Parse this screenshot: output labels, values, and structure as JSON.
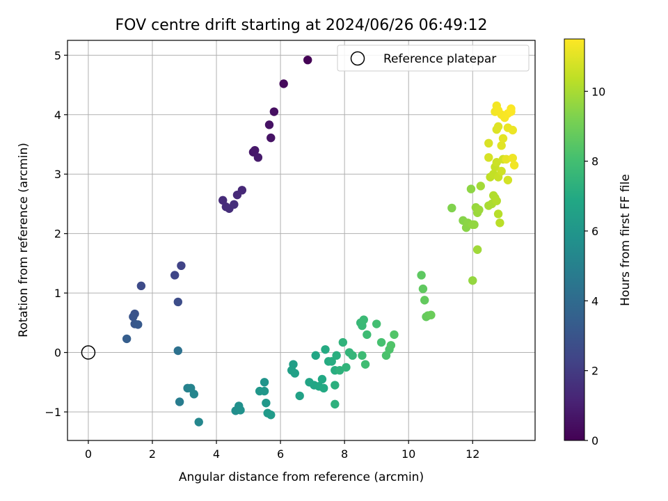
{
  "chart_data": {
    "type": "scatter",
    "title": "FOV centre drift starting at 2024/06/26 06:49:12",
    "xlabel": "Angular distance from reference (arcmin)",
    "ylabel": "Rotation from reference (arcmin)",
    "xlim": [
      -0.65,
      13.95
    ],
    "ylim": [
      -1.48,
      5.25
    ],
    "xticks": [
      0,
      2,
      4,
      6,
      8,
      10,
      12
    ],
    "yticks": [
      -1,
      0,
      1,
      2,
      3,
      4,
      5
    ],
    "xtick_labels": [
      "0",
      "2",
      "4",
      "6",
      "8",
      "10",
      "12"
    ],
    "ytick_labels": [
      "−1",
      "0",
      "1",
      "2",
      "3",
      "4",
      "5"
    ],
    "grid": true,
    "legend": {
      "placement": "top-right",
      "entries": [
        "Reference platepar"
      ]
    },
    "reference_point": {
      "x": 0,
      "y": 0,
      "label": "Reference platepar"
    },
    "colorbar": {
      "label": "Hours from first FF file",
      "colormap": "viridis",
      "range": [
        0,
        11.5
      ],
      "ticks": [
        0,
        2,
        4,
        6,
        8,
        10
      ],
      "tick_labels": [
        "0",
        "2",
        "4",
        "6",
        "8",
        "10"
      ]
    },
    "series": [
      {
        "values": [
          [
            6.85,
            4.92,
            0.05
          ],
          [
            6.1,
            4.52,
            0.25
          ],
          [
            5.8,
            4.05,
            0.45
          ],
          [
            5.65,
            3.83,
            0.55
          ],
          [
            5.7,
            3.61,
            0.6
          ],
          [
            5.15,
            3.37,
            0.7
          ],
          [
            5.2,
            3.4,
            0.75
          ],
          [
            5.3,
            3.28,
            0.85
          ],
          [
            4.8,
            2.73,
            1.3
          ],
          [
            4.65,
            2.65,
            1.35
          ],
          [
            4.2,
            2.56,
            1.4
          ],
          [
            4.3,
            2.45,
            1.45
          ],
          [
            4.4,
            2.42,
            1.5
          ],
          [
            4.55,
            2.49,
            1.55
          ],
          [
            2.9,
            1.46,
            2.3
          ],
          [
            2.7,
            1.3,
            2.4
          ],
          [
            1.65,
            1.12,
            2.6
          ],
          [
            2.8,
            0.85,
            2.7
          ],
          [
            1.45,
            0.65,
            2.9
          ],
          [
            1.4,
            0.6,
            3.0
          ],
          [
            1.45,
            0.48,
            3.1
          ],
          [
            1.55,
            0.47,
            3.2
          ],
          [
            1.2,
            0.23,
            3.4
          ],
          [
            2.8,
            0.03,
            4.3
          ],
          [
            2.85,
            -0.83,
            4.8
          ],
          [
            3.1,
            -0.6,
            5.0
          ],
          [
            3.2,
            -0.6,
            5.1
          ],
          [
            3.3,
            -0.7,
            5.2
          ],
          [
            3.45,
            -1.17,
            5.3
          ],
          [
            4.6,
            -0.98,
            5.6
          ],
          [
            4.7,
            -0.9,
            5.7
          ],
          [
            4.75,
            -0.97,
            5.75
          ],
          [
            5.5,
            -0.5,
            5.9
          ],
          [
            5.35,
            -0.65,
            6.0
          ],
          [
            5.5,
            -0.65,
            6.05
          ],
          [
            5.55,
            -0.85,
            6.1
          ],
          [
            5.6,
            -1.02,
            6.2
          ],
          [
            5.7,
            -1.05,
            6.25
          ],
          [
            6.4,
            -0.2,
            6.4
          ],
          [
            6.35,
            -0.3,
            6.45
          ],
          [
            6.45,
            -0.35,
            6.5
          ],
          [
            6.6,
            -0.73,
            6.55
          ],
          [
            6.9,
            -0.5,
            6.7
          ],
          [
            7.05,
            -0.55,
            6.75
          ],
          [
            7.1,
            -0.05,
            6.8
          ],
          [
            7.2,
            -0.57,
            6.85
          ],
          [
            7.3,
            -0.45,
            6.9
          ],
          [
            7.35,
            -0.6,
            6.95
          ],
          [
            7.4,
            0.05,
            7.0
          ],
          [
            7.5,
            -0.15,
            7.05
          ],
          [
            7.6,
            -0.15,
            7.1
          ],
          [
            7.7,
            -0.3,
            7.15
          ],
          [
            7.75,
            -0.05,
            7.2
          ],
          [
            7.7,
            -0.55,
            7.25
          ],
          [
            7.7,
            -0.87,
            7.3
          ],
          [
            7.85,
            -0.3,
            7.35
          ],
          [
            7.95,
            0.17,
            7.4
          ],
          [
            8.05,
            -0.25,
            7.45
          ],
          [
            8.15,
            0.0,
            7.5
          ],
          [
            8.25,
            -0.05,
            7.55
          ],
          [
            8.5,
            0.5,
            7.65
          ],
          [
            8.55,
            0.45,
            7.7
          ],
          [
            8.6,
            0.55,
            7.75
          ],
          [
            8.55,
            -0.05,
            7.8
          ],
          [
            8.7,
            0.3,
            7.85
          ],
          [
            8.65,
            -0.2,
            7.9
          ],
          [
            9.0,
            0.48,
            8.0
          ],
          [
            9.15,
            0.17,
            8.1
          ],
          [
            9.3,
            -0.05,
            8.2
          ],
          [
            9.4,
            0.05,
            8.25
          ],
          [
            9.45,
            0.12,
            8.3
          ],
          [
            9.55,
            0.3,
            8.35
          ],
          [
            10.4,
            1.3,
            8.6
          ],
          [
            10.45,
            1.07,
            8.65
          ],
          [
            10.5,
            0.88,
            8.7
          ],
          [
            10.55,
            0.6,
            8.75
          ],
          [
            10.6,
            0.62,
            8.8
          ],
          [
            10.7,
            0.63,
            8.85
          ],
          [
            11.35,
            2.43,
            9.3
          ],
          [
            11.7,
            2.22,
            9.4
          ],
          [
            11.8,
            2.1,
            9.45
          ],
          [
            11.85,
            2.18,
            9.5
          ],
          [
            11.95,
            2.75,
            9.55
          ],
          [
            12.0,
            2.15,
            9.6
          ],
          [
            12.05,
            2.15,
            9.62
          ],
          [
            12.0,
            1.21,
            9.65
          ],
          [
            12.1,
            2.44,
            9.7
          ],
          [
            12.15,
            2.35,
            9.75
          ],
          [
            12.2,
            2.4,
            9.8
          ],
          [
            12.15,
            1.73,
            9.85
          ],
          [
            12.25,
            2.8,
            9.9
          ],
          [
            12.5,
            2.47,
            10.0
          ],
          [
            12.6,
            2.5,
            10.05
          ],
          [
            12.7,
            2.6,
            10.1
          ],
          [
            12.65,
            2.64,
            10.15
          ],
          [
            12.75,
            2.55,
            10.2
          ],
          [
            12.8,
            2.33,
            10.25
          ],
          [
            12.85,
            2.18,
            10.3
          ],
          [
            12.55,
            2.95,
            10.4
          ],
          [
            12.65,
            3.0,
            10.45
          ],
          [
            12.7,
            3.12,
            10.5
          ],
          [
            12.8,
            2.95,
            10.55
          ],
          [
            12.75,
            3.2,
            10.6
          ],
          [
            12.9,
            3.05,
            10.65
          ],
          [
            12.95,
            3.25,
            10.7
          ],
          [
            13.1,
            2.9,
            10.75
          ],
          [
            12.5,
            3.28,
            10.8
          ],
          [
            12.5,
            3.52,
            10.85
          ],
          [
            12.75,
            3.75,
            10.9
          ],
          [
            12.8,
            3.8,
            10.95
          ],
          [
            12.9,
            3.48,
            11.0
          ],
          [
            12.95,
            3.6,
            11.05
          ],
          [
            13.05,
            3.25,
            11.1
          ],
          [
            13.1,
            3.78,
            11.15
          ],
          [
            13.25,
            3.74,
            11.2
          ],
          [
            13.25,
            3.27,
            11.25
          ],
          [
            13.3,
            3.15,
            11.28
          ],
          [
            12.7,
            4.05,
            11.3
          ],
          [
            12.75,
            4.15,
            11.32
          ],
          [
            12.8,
            4.07,
            11.35
          ],
          [
            12.9,
            4.0,
            11.37
          ],
          [
            13.0,
            3.95,
            11.4
          ],
          [
            13.1,
            4.02,
            11.42
          ],
          [
            13.2,
            4.1,
            11.45
          ],
          [
            13.2,
            4.05,
            11.48
          ]
        ]
      }
    ]
  }
}
